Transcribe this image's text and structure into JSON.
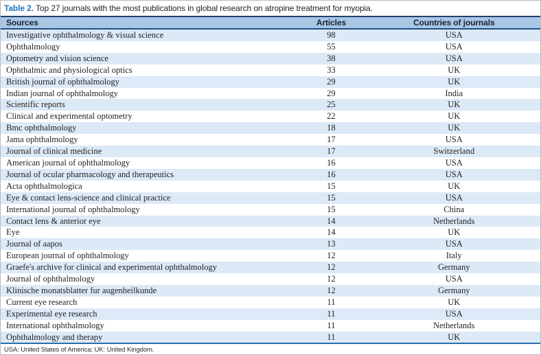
{
  "caption": {
    "label": "Table 2.",
    "text": " Top 27 journals with the most publications in global research on atropine treatment for myopia."
  },
  "table": {
    "columns": [
      "Sources",
      "Articles",
      "Countries of journals"
    ],
    "rows": [
      {
        "source": "Investigative ophthalmology & visual science",
        "articles": "98",
        "country": "USA"
      },
      {
        "source": "Ophthalmology",
        "articles": "55",
        "country": "USA"
      },
      {
        "source": "Optometry and vision science",
        "articles": "38",
        "country": "USA"
      },
      {
        "source": "Ophthalmic and physiological optics",
        "articles": "33",
        "country": "UK"
      },
      {
        "source": "British journal of ophthalmology",
        "articles": "29",
        "country": "UK"
      },
      {
        "source": "Indian journal of ophthalmology",
        "articles": "29",
        "country": "India"
      },
      {
        "source": "Scientific reports",
        "articles": "25",
        "country": "UK"
      },
      {
        "source": "Clinical and experimental optometry",
        "articles": "22",
        "country": "UK"
      },
      {
        "source": "Bmc ophthalmology",
        "articles": "18",
        "country": "UK"
      },
      {
        "source": "Jama ophthalmology",
        "articles": "17",
        "country": "USA"
      },
      {
        "source": "Journal of clinical medicine",
        "articles": "17",
        "country": "Switzerland"
      },
      {
        "source": "American journal of ophthalmology",
        "articles": "16",
        "country": "USA"
      },
      {
        "source": "Journal of ocular pharmacology and therapeutics",
        "articles": "16",
        "country": "USA"
      },
      {
        "source": "Acta ophthalmologica",
        "articles": "15",
        "country": "UK"
      },
      {
        "source": "Eye & contact lens-science and clinical practice",
        "articles": "15",
        "country": "USA"
      },
      {
        "source": "International journal of ophthalmology",
        "articles": "15",
        "country": "China"
      },
      {
        "source": "Contact lens & anterior eye",
        "articles": "14",
        "country": "Netherlands"
      },
      {
        "source": "Eye",
        "articles": "14",
        "country": "UK"
      },
      {
        "source": "Journal of aapos",
        "articles": "13",
        "country": "USA"
      },
      {
        "source": "European journal of ophthalmology",
        "articles": "12",
        "country": "Italy"
      },
      {
        "source": "Graefe's archive for clinical and experimental ophthalmology",
        "articles": "12",
        "country": "Germany"
      },
      {
        "source": "Journal of ophthalmology",
        "articles": "12",
        "country": "USA"
      },
      {
        "source": "Klinische monatsblatter fur augenheilkunde",
        "articles": "12",
        "country": "Germany"
      },
      {
        "source": "Current eye research",
        "articles": "11",
        "country": "UK"
      },
      {
        "source": "Experimental eye research",
        "articles": "11",
        "country": "USA"
      },
      {
        "source": "International ophthalmology",
        "articles": "11",
        "country": "Netherlands"
      },
      {
        "source": "Ophthalmology and therapy",
        "articles": "11",
        "country": "UK"
      }
    ]
  },
  "footnote": "USA: United States of America; UK: United Kingdom.",
  "colors": {
    "caption_label_blue": "#1b74bc",
    "header_background": "#a9c7e5",
    "header_top_border": "#22406b",
    "header_bottom_border": "#1d5086",
    "row_stripe_blue": "#dce9f6",
    "table_bottom_border": "#2b6cad"
  }
}
